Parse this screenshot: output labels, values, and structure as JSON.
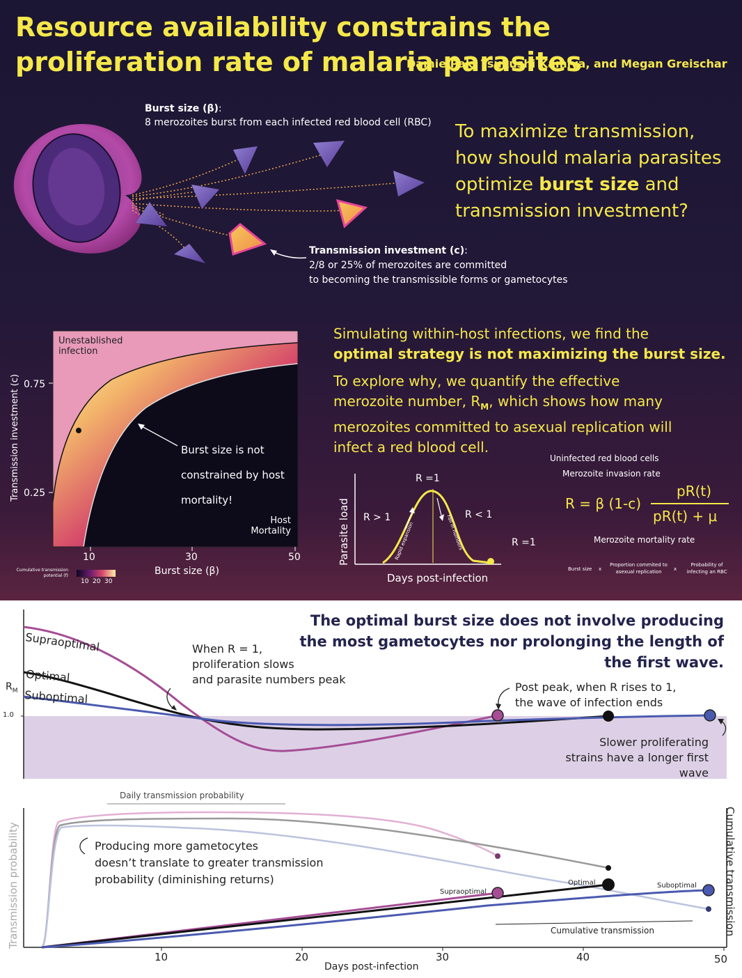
{
  "title": "Resource availability constrains the proliferation rate of malaria parasites",
  "authors": "Damie Pak, Tsukushi Kamiya, and Megan Greischar",
  "burst": {
    "heading": "Burst size (β)",
    "text": "8 merozoites burst from each infected red blood cell (RBC)"
  },
  "transmission": {
    "heading": "Transmission investment (c)",
    "line1": "2/8 or 25% of merozoites are committed",
    "line2": "to becoming the transmissible forms or gametocytes"
  },
  "question": {
    "pre": "To maximize transmission, how should malaria parasites optimize ",
    "bold": "burst size",
    "post": " and transmission investment?"
  },
  "simulation": {
    "line1": "Simulating within-host infections, we find the",
    "bold": "optimal strategy is not maximizing the burst size.",
    "explore": "To explore why, we quantify the effective merozoite number, R",
    "explore_sub": "M",
    "explore_rest": ", which shows how many merozoites committed to asexual replication will infect a red blood cell."
  },
  "heatmap": {
    "ylabel": "Transmission investment (c)",
    "xlabel": "Burst size (β)",
    "yticks": [
      "0.75",
      "0.25"
    ],
    "xticks": [
      "10",
      "30",
      "50"
    ],
    "unestablished": "Unestablished infection",
    "host_mortality": "Host Mortality",
    "note_line1": "Burst size is not",
    "note_line2": "constrained by host",
    "note_line3": "mortality!",
    "legend_label": "Cumulative transmission potential (f)",
    "legend_ticks": [
      "10",
      "20",
      "30"
    ]
  },
  "rm_diagram": {
    "ylabel": "Parasite load",
    "xlabel": "Days post-infection",
    "peak": "R =1",
    "gt": "R > 1",
    "lt": "R < 1",
    "end": "R =1",
    "rapid": "Rapid expansion",
    "fall": "Fall in numbers"
  },
  "equation": {
    "uninfected": "Uninfected red blood cells",
    "invasion": "Merozoite invasion rate",
    "lhs": "R = β (1-c)",
    "numerator": "pR(t)",
    "denominator": "pR(t) + μ",
    "mortality": "Merozoite mortality rate",
    "burst_size": "Burst size",
    "proportion": "Proportion commited to asexual replication",
    "probability": "Probability of infecting an RBC",
    "times": "x"
  },
  "bottom": {
    "title": "The optimal burst size does not involve producing the most gametocytes nor prolonging the length of the first wave.",
    "rm_label": "R",
    "rm_sub": "M",
    "one": "1.0",
    "supraoptimal": "Supraoptimal",
    "optimal": "Optimal",
    "suboptimal": "Suboptimal",
    "note_peak_1": "When R = 1,",
    "note_peak_2": "proliferation slows",
    "note_peak_3": "and parasite numbers peak",
    "note_post_1": "Post peak, when R rises to 1,",
    "note_post_2": "the wave of infection ends",
    "note_slow_1": "Slower proliferating",
    "note_slow_2": "strains have a longer first wave",
    "daily": "Daily transmission probability",
    "diminish_1": "Producing more gametocytes",
    "diminish_2": "doesn’t translate to greater transmission",
    "diminish_3": "probability (diminishing returns)",
    "trans_prob": "Transmission probability",
    "cum_trans_axis": "Cumulative transmission",
    "cum_trans_label": "Cumulative transmission",
    "xlabel": "Days post-infection",
    "xticks": [
      "10",
      "20",
      "30",
      "40",
      "50"
    ]
  },
  "colors": {
    "yellow": "#f5e84a",
    "supraoptimal": "#a64d96",
    "optimal": "#111111",
    "suboptimal": "#4a5ab0",
    "shade": "#ddd0e6"
  }
}
